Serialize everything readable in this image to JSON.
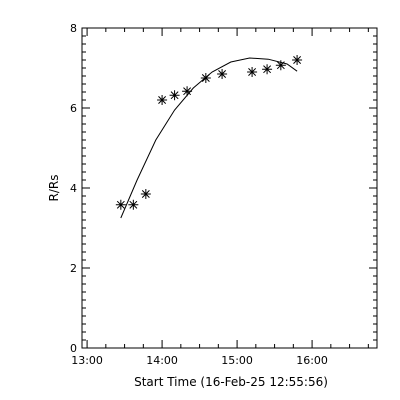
{
  "chart_data": {
    "type": "scatter",
    "xlabel": "Start Time (16-Feb-25 12:55:56)",
    "ylabel": "R/Rs",
    "xlim": [
      "12:55:56",
      "16:51:56"
    ],
    "ylim": [
      0,
      8
    ],
    "x_ticks": [
      "13:00",
      "14:00",
      "15:00",
      "16:00"
    ],
    "y_ticks": [
      "0",
      "2",
      "4",
      "6",
      "8"
    ],
    "grid": false,
    "series": [
      {
        "marker": "asterisk",
        "points": [
          {
            "x": "13:27",
            "y": 3.58
          },
          {
            "x": "13:37",
            "y": 3.58
          },
          {
            "x": "13:47",
            "y": 3.85
          },
          {
            "x": "14:00",
            "y": 6.2
          },
          {
            "x": "14:10",
            "y": 6.32
          },
          {
            "x": "14:20",
            "y": 6.42
          },
          {
            "x": "14:35",
            "y": 6.75
          },
          {
            "x": "14:48",
            "y": 6.85
          },
          {
            "x": "15:12",
            "y": 6.9
          },
          {
            "x": "15:24",
            "y": 6.97
          },
          {
            "x": "15:35",
            "y": 7.07
          },
          {
            "x": "15:48",
            "y": 7.2
          }
        ]
      },
      {
        "style": "line",
        "points": [
          {
            "x": "13:27",
            "y": 3.25
          },
          {
            "x": "13:40",
            "y": 4.2
          },
          {
            "x": "13:55",
            "y": 5.2
          },
          {
            "x": "14:10",
            "y": 5.95
          },
          {
            "x": "14:25",
            "y": 6.5
          },
          {
            "x": "14:40",
            "y": 6.9
          },
          {
            "x": "14:55",
            "y": 7.15
          },
          {
            "x": "15:10",
            "y": 7.25
          },
          {
            "x": "15:25",
            "y": 7.22
          },
          {
            "x": "15:40",
            "y": 7.1
          },
          {
            "x": "15:48",
            "y": 6.92
          }
        ]
      }
    ]
  }
}
